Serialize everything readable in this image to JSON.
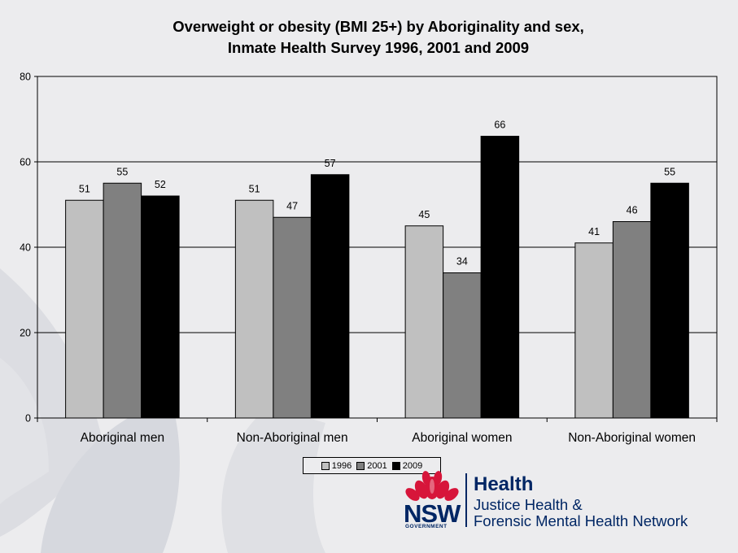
{
  "chart_data": {
    "type": "bar",
    "title": "Overweight or obesity (BMI 25+) by Aboriginality and sex,",
    "subtitle": "Inmate Health Survey 1996, 2001 and 2009",
    "categories": [
      "Aboriginal men",
      "Non-Aboriginal men",
      "Aboriginal women",
      "Non-Aboriginal women"
    ],
    "series": [
      {
        "name": "1996",
        "values": [
          51,
          51,
          45,
          41
        ],
        "color": "#c0c0c0"
      },
      {
        "name": "2001",
        "values": [
          55,
          47,
          34,
          46
        ],
        "color": "#808080"
      },
      {
        "name": "2009",
        "values": [
          52,
          57,
          66,
          55
        ],
        "color": "#000000"
      }
    ],
    "ylim": [
      0,
      80
    ],
    "yticks": [
      "0",
      "20",
      "40",
      "60",
      "80"
    ],
    "xlabel": "",
    "ylabel": "",
    "grid": true,
    "legend_position": "bottom"
  },
  "logo": {
    "nsw": "NSW",
    "government": "GOVERNMENT",
    "health": "Health",
    "network_line1": "Justice Health &",
    "network_line2": "Forensic Mental Health Network"
  },
  "colors": {
    "plot_background": "#ececee",
    "logo_blue": "#002664",
    "logo_red": "#d7153a"
  }
}
